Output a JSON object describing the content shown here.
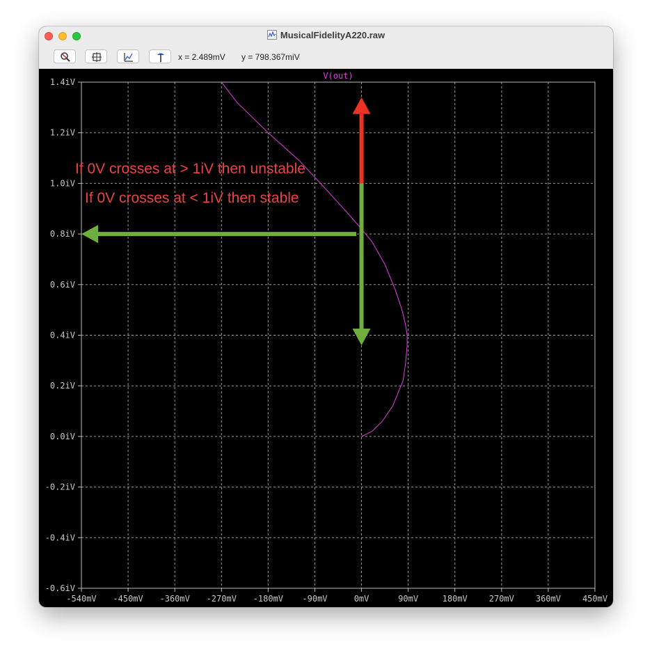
{
  "window": {
    "title": "MusicalFidelityA220.raw",
    "traffic_lights": [
      "close",
      "minimize",
      "zoom"
    ]
  },
  "toolbar": {
    "buttons": [
      "zoom-tool-icon",
      "autorange-icon",
      "plot-settings-icon",
      "probe-icon"
    ],
    "x_readout": "x = 2.489mV",
    "y_readout": "y = 798.367miV"
  },
  "annotations": {
    "line1": "If 0V crosses at > 1iV then unstable",
    "line2": "If 0V crosses at < 1iV then stable"
  },
  "chart_data": {
    "type": "line",
    "trace_label": "V(out)",
    "background": "#000000",
    "trace_color": "#e040e0",
    "grid": true,
    "xlim": [
      -540,
      450
    ],
    "ylim": [
      -0.6,
      1.4
    ],
    "x_ticks": [
      -540,
      -450,
      -360,
      -270,
      -180,
      -90,
      0,
      90,
      180,
      270,
      360,
      450
    ],
    "x_tick_labels": [
      "-540mV",
      "-450mV",
      "-360mV",
      "-270mV",
      "-180mV",
      "-90mV",
      "0mV",
      "90mV",
      "180mV",
      "270mV",
      "360mV",
      "450mV"
    ],
    "y_ticks": [
      1.4,
      1.2,
      1.0,
      0.8,
      0.6,
      0.4,
      0.2,
      0.0,
      -0.2,
      -0.4,
      -0.6
    ],
    "y_tick_labels": [
      "1.4iV",
      "1.2iV",
      "1.0iV",
      "0.8iV",
      "0.6iV",
      "0.4iV",
      "0.2iV",
      "0.0iV",
      "-0.2iV",
      "-0.4iV",
      "-0.6iV"
    ],
    "series": [
      {
        "name": "V(out)",
        "x": [
          0,
          20,
          40,
          60,
          80,
          85,
          88,
          88,
          85,
          78,
          65,
          45,
          20,
          0,
          -30,
          -70,
          -120,
          -180,
          -240,
          -270
        ],
        "y": [
          0.0,
          0.02,
          0.06,
          0.12,
          0.22,
          0.29,
          0.36,
          0.4,
          0.44,
          0.5,
          0.58,
          0.68,
          0.77,
          0.82,
          0.89,
          0.98,
          1.09,
          1.2,
          1.32,
          1.4
        ]
      }
    ],
    "arrows": [
      {
        "color": "#ea3323",
        "from_x": 0,
        "from_y": 1.0,
        "to_x": 0,
        "to_y": 1.34
      },
      {
        "color": "#70ad3f",
        "from_x": 0,
        "from_y": 1.0,
        "to_x": 0,
        "to_y": 0.36
      },
      {
        "color": "#70ad3f",
        "from_x": -10,
        "from_y": 0.8,
        "to_x": -540,
        "to_y": 0.8
      }
    ]
  }
}
